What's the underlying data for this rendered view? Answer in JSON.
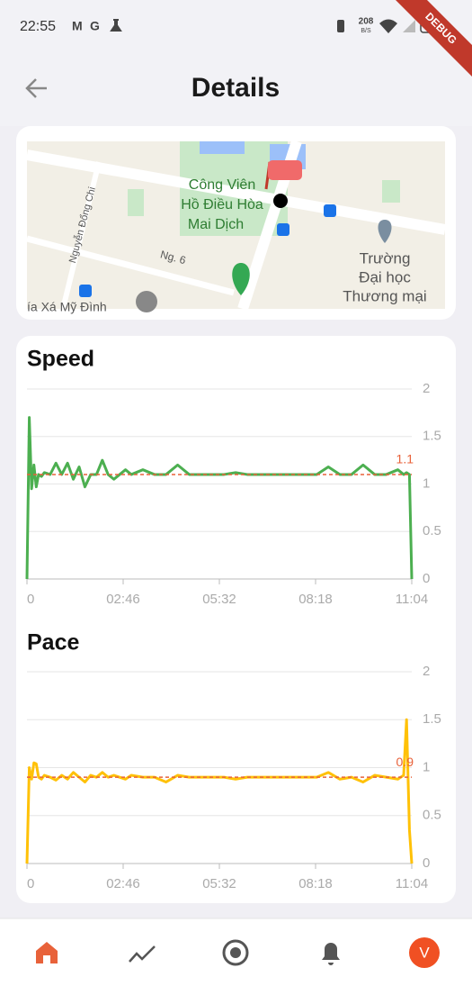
{
  "status_bar": {
    "time": "22:55",
    "icons": [
      "M",
      "G"
    ],
    "net_speed": "208",
    "net_unit": "B/S"
  },
  "debug_banner": "DEBUG",
  "header": {
    "title": "Details"
  },
  "map": {
    "labels": [
      "Công Viên",
      "Hồ Điều Hòa",
      "Mai Dịch",
      "Ng. 6",
      "Nguyễn Đổng Chi",
      "Trường",
      "Đại học",
      "Thương mại",
      "ía Xá Mỹ Đình"
    ]
  },
  "chart_data": [
    {
      "type": "line",
      "title": "Speed",
      "x": [
        0,
        4,
        8,
        12,
        16,
        20,
        25,
        30,
        40,
        50,
        60,
        70,
        80,
        90,
        100,
        110,
        120,
        130,
        140,
        150,
        160,
        170,
        180,
        200,
        220,
        240,
        260,
        280,
        300,
        320,
        340,
        360,
        380,
        400,
        420,
        440,
        460,
        480,
        500,
        520,
        540,
        560,
        580,
        600,
        620,
        640,
        650,
        655,
        660,
        664
      ],
      "series": [
        {
          "color": "#4caf50",
          "values": [
            0,
            1.7,
            0.95,
            1.2,
            0.97,
            1.1,
            1.08,
            1.12,
            1.1,
            1.22,
            1.1,
            1.22,
            1.05,
            1.18,
            0.97,
            1.1,
            1.1,
            1.25,
            1.1,
            1.05,
            1.1,
            1.15,
            1.1,
            1.15,
            1.1,
            1.1,
            1.2,
            1.1,
            1.1,
            1.1,
            1.1,
            1.12,
            1.1,
            1.1,
            1.1,
            1.1,
            1.1,
            1.1,
            1.1,
            1.18,
            1.1,
            1.1,
            1.2,
            1.1,
            1.1,
            1.15,
            1.1,
            1.12,
            1.1,
            0
          ]
        }
      ],
      "average": 1.1,
      "average_color": "#e8623a",
      "xlim": [
        0,
        664
      ],
      "xticks": [
        0,
        {
          "value": 166,
          "label": "02:46"
        },
        {
          "value": 332,
          "label": "05:32"
        },
        {
          "value": 498,
          "label": "08:18"
        },
        {
          "value": 664,
          "label": "11:04"
        }
      ],
      "ylim": [
        0,
        2
      ],
      "yticks": [
        0,
        0.5,
        1,
        1.5,
        2
      ],
      "grid": true
    },
    {
      "type": "line",
      "title": "Pace",
      "x": [
        0,
        4,
        8,
        12,
        16,
        20,
        25,
        30,
        40,
        50,
        60,
        70,
        80,
        90,
        100,
        110,
        120,
        130,
        140,
        150,
        160,
        170,
        180,
        200,
        220,
        240,
        260,
        280,
        300,
        320,
        340,
        360,
        380,
        400,
        420,
        440,
        460,
        480,
        500,
        520,
        540,
        560,
        580,
        600,
        620,
        640,
        650,
        655,
        660,
        664
      ],
      "series": [
        {
          "color": "#ffc107",
          "values": [
            0,
            1.0,
            0.88,
            1.05,
            1.04,
            0.9,
            0.88,
            0.92,
            0.9,
            0.87,
            0.92,
            0.88,
            0.95,
            0.9,
            0.85,
            0.92,
            0.9,
            0.95,
            0.9,
            0.92,
            0.9,
            0.88,
            0.92,
            0.9,
            0.9,
            0.85,
            0.92,
            0.9,
            0.9,
            0.9,
            0.9,
            0.88,
            0.9,
            0.9,
            0.9,
            0.9,
            0.9,
            0.9,
            0.9,
            0.95,
            0.88,
            0.9,
            0.85,
            0.92,
            0.9,
            0.88,
            0.92,
            1.5,
            0.35,
            0
          ]
        }
      ],
      "average": 0.9,
      "average_color": "#e8623a",
      "xlim": [
        0,
        664
      ],
      "xticks": [
        0,
        {
          "value": 166,
          "label": "02:46"
        },
        {
          "value": 332,
          "label": "05:32"
        },
        {
          "value": 498,
          "label": "08:18"
        },
        {
          "value": 664,
          "label": "11:04"
        }
      ],
      "ylim": [
        0,
        2
      ],
      "yticks": [
        0,
        0.5,
        1,
        1.5,
        2
      ],
      "grid": true
    }
  ],
  "bottom_nav": {
    "avatar": "V"
  }
}
